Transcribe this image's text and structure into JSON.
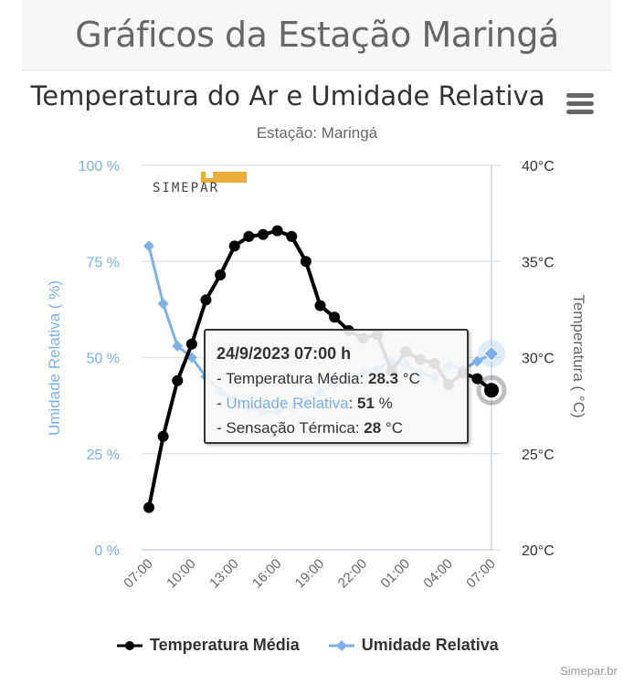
{
  "page": {
    "title": "Gráficos da Estação Maringá"
  },
  "chart": {
    "title": "Temperatura do Ar e Umidade Relativa",
    "subtitle": "Estação: Maringá",
    "menu_icon": "hamburger-menu-icon",
    "logo_text": "SIMEPAR",
    "credits": "Simepar.br"
  },
  "tooltip": {
    "header": "24/9/2023 07:00 h",
    "temp_label": "- Temperatura Média: ",
    "temp_value": "28.3",
    "temp_unit": " °C",
    "hum_prefix": "- ",
    "hum_label": "Umidade Relativa",
    "hum_sep": ": ",
    "hum_value": "51",
    "hum_unit": " %",
    "sens_label": "- Sensação Térmica: ",
    "sens_value": "28",
    "sens_unit": " °C"
  },
  "legend": [
    {
      "label": "Temperatura Média",
      "color": "#000000"
    },
    {
      "label": "Umidade Relativa",
      "color": "#7cb0e6"
    }
  ],
  "colors": {
    "temperature": "#000000",
    "humidity": "#7cb0e6",
    "axis_left": "#7cb0e6",
    "grid": "#e6e6e6"
  },
  "chart_data": {
    "type": "line",
    "title": "Temperatura do Ar e Umidade Relativa",
    "subtitle": "Estação: Maringá",
    "x": [
      "07:00",
      "08:00",
      "09:00",
      "10:00",
      "11:00",
      "12:00",
      "13:00",
      "14:00",
      "15:00",
      "16:00",
      "17:00",
      "18:00",
      "19:00",
      "20:00",
      "21:00",
      "22:00",
      "23:00",
      "00:00",
      "01:00",
      "02:00",
      "03:00",
      "04:00",
      "05:00",
      "06:00",
      "07:00"
    ],
    "x_tick_labels": [
      "07:00",
      "10:00",
      "13:00",
      "16:00",
      "19:00",
      "22:00",
      "01:00",
      "04:00",
      "07:00"
    ],
    "series": [
      {
        "name": "Temperatura Média",
        "axis": "right",
        "unit": "°C",
        "values": [
          22.2,
          25.9,
          28.8,
          30.7,
          33.0,
          34.3,
          35.8,
          36.3,
          36.4,
          36.6,
          36.3,
          35.0,
          32.7,
          32.1,
          31.4,
          31.0,
          31.2,
          29.3,
          30.3,
          29.9,
          29.7,
          28.6,
          29.2,
          28.9,
          28.3
        ]
      },
      {
        "name": "Umidade Relativa",
        "axis": "left",
        "unit": "%",
        "values": [
          79,
          64,
          53,
          50,
          45,
          41,
          39,
          37,
          36,
          36,
          37,
          39,
          41,
          43,
          44,
          46,
          47,
          49,
          48,
          46,
          45,
          48,
          47,
          49,
          51
        ]
      }
    ],
    "y_left": {
      "label": "Umidade Relativa ( %)",
      "ticks": [
        "0 %",
        "25 %",
        "50 %",
        "75 %",
        "100 %"
      ],
      "range": [
        0,
        100
      ]
    },
    "y_right": {
      "label": "Temperatura ( °C)",
      "ticks": [
        "20°C",
        "25°C",
        "30°C",
        "35°C",
        "40°C"
      ],
      "range": [
        20,
        40
      ]
    },
    "grid": true,
    "legend_position": "bottom"
  }
}
